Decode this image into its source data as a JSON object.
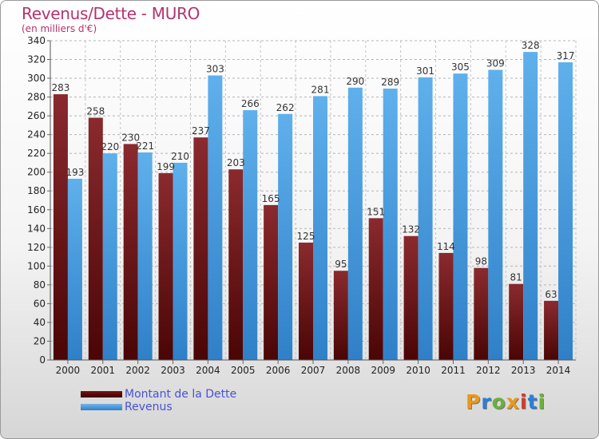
{
  "header": {
    "title": "Revenus/Dette - MURO",
    "subtitle": "(en milliers d'€)"
  },
  "colors": {
    "title": "#b4336e",
    "debt": "#7a1a1f",
    "revenue": "#4aa3e6",
    "legend_text": "#4a50d8"
  },
  "logo": {
    "letters": [
      "P",
      "r",
      "o",
      "x",
      "i",
      "t",
      "i"
    ],
    "colors": [
      "#e8981a",
      "#2b7fd4",
      "#6ab23a",
      "#e8981a",
      "#d23b2a",
      "#2b7fd4",
      "#6ab23a"
    ]
  },
  "chart_data": {
    "type": "bar",
    "title": "Revenus/Dette - MURO",
    "subtitle": "(en milliers d'€)",
    "categories": [
      "2000",
      "2001",
      "2002",
      "2003",
      "2004",
      "2005",
      "2006",
      "2007",
      "2008",
      "2009",
      "2010",
      "2011",
      "2012",
      "2013",
      "2014"
    ],
    "series": [
      {
        "name": "Montant de la Dette",
        "color": "#7a1a1f",
        "values": [
          283,
          258,
          230,
          199,
          237,
          203,
          165,
          125,
          95,
          151,
          132,
          114,
          98,
          81,
          63
        ]
      },
      {
        "name": "Revenus",
        "color": "#4aa3e6",
        "values": [
          193,
          220,
          221,
          210,
          303,
          266,
          262,
          281,
          290,
          289,
          301,
          305,
          309,
          328,
          317
        ]
      }
    ],
    "ylim": [
      0,
      340
    ],
    "ytick_step": 20,
    "grid": true,
    "legend_position": "bottom-left"
  }
}
